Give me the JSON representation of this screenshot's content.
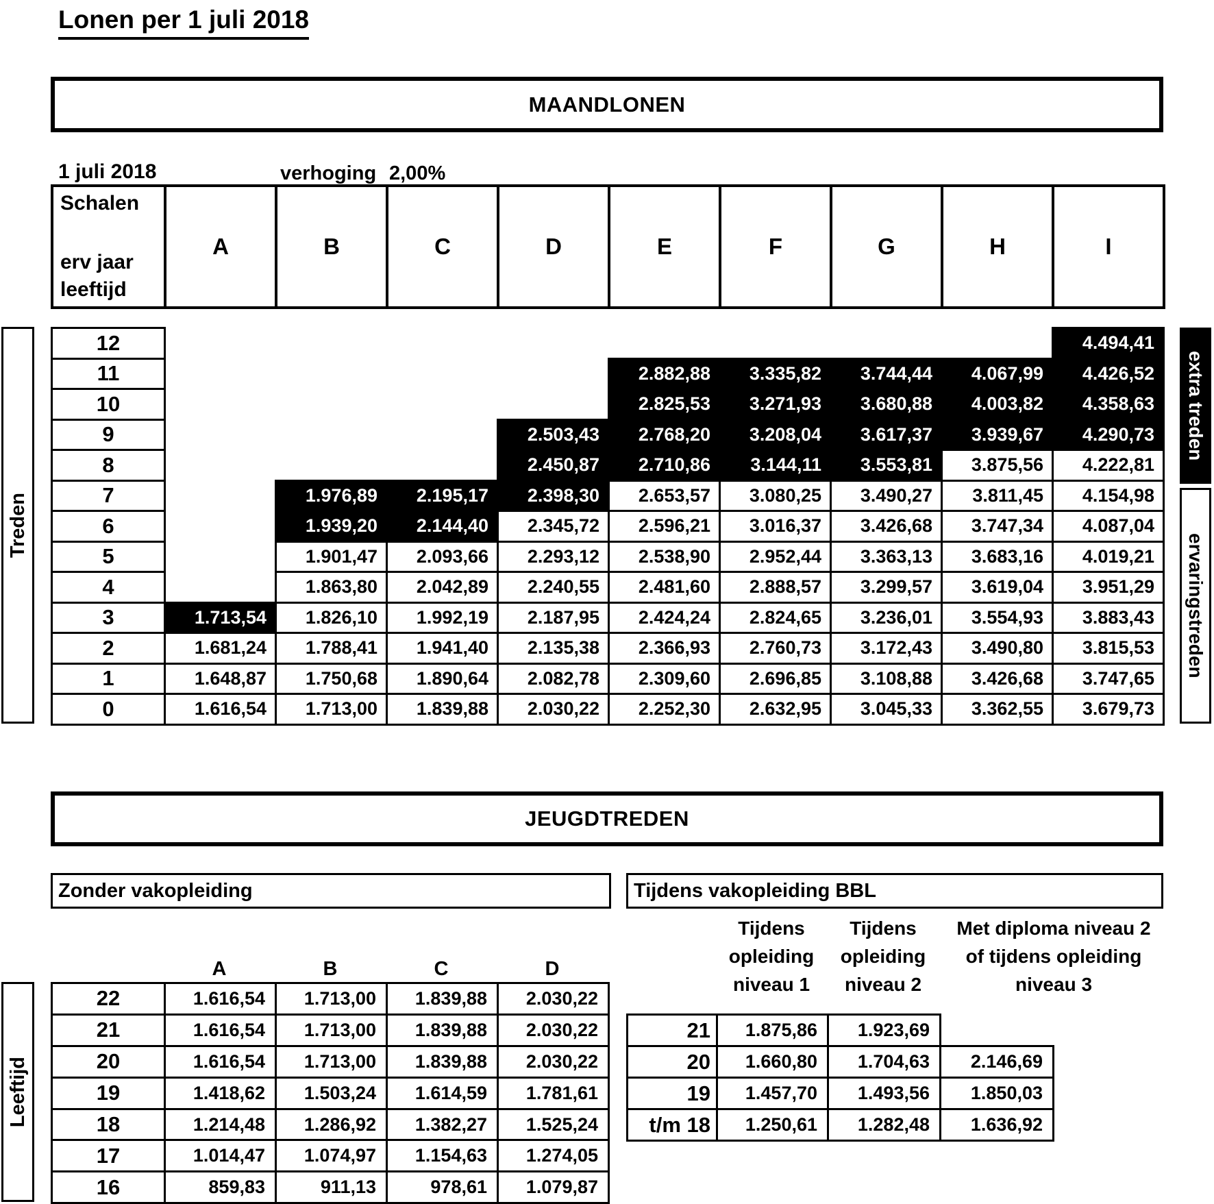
{
  "page": {
    "title": "Lonen per 1 juli 2018"
  },
  "colors": {
    "text": "#000000",
    "background": "#ffffff",
    "highlight_bg": "#000000",
    "highlight_text": "#ffffff"
  },
  "maandlonen": {
    "section_title": "MAANDLONEN",
    "date_label": "1 juli 2018",
    "verhoging_label": "verhoging",
    "verhoging_value": "2,00%",
    "corner": {
      "line1": "Schalen",
      "line2": "erv jaar",
      "line3": "leeftijd"
    },
    "columns": [
      "A",
      "B",
      "C",
      "D",
      "E",
      "F",
      "G",
      "H",
      "I"
    ],
    "left_axis_label": "Treden",
    "right_axis_top_label": "extra treden",
    "right_axis_bottom_label": "ervaringstreden",
    "rows": [
      {
        "label": "12",
        "cells": [
          {
            "v": "",
            "t": "empty"
          },
          {
            "v": "",
            "t": "empty"
          },
          {
            "v": "",
            "t": "empty"
          },
          {
            "v": "",
            "t": "empty"
          },
          {
            "v": "",
            "t": "empty"
          },
          {
            "v": "",
            "t": "empty"
          },
          {
            "v": "",
            "t": "empty"
          },
          {
            "v": "",
            "t": "empty"
          },
          {
            "v": "4.494,41",
            "t": "black"
          }
        ]
      },
      {
        "label": "11",
        "cells": [
          {
            "v": "",
            "t": "empty"
          },
          {
            "v": "",
            "t": "empty"
          },
          {
            "v": "",
            "t": "empty"
          },
          {
            "v": "",
            "t": "empty"
          },
          {
            "v": "2.882,88",
            "t": "black"
          },
          {
            "v": "3.335,82",
            "t": "black"
          },
          {
            "v": "3.744,44",
            "t": "black"
          },
          {
            "v": "4.067,99",
            "t": "black"
          },
          {
            "v": "4.426,52",
            "t": "black"
          }
        ]
      },
      {
        "label": "10",
        "cells": [
          {
            "v": "",
            "t": "empty"
          },
          {
            "v": "",
            "t": "empty"
          },
          {
            "v": "",
            "t": "empty"
          },
          {
            "v": "",
            "t": "empty"
          },
          {
            "v": "2.825,53",
            "t": "black"
          },
          {
            "v": "3.271,93",
            "t": "black"
          },
          {
            "v": "3.680,88",
            "t": "black"
          },
          {
            "v": "4.003,82",
            "t": "black"
          },
          {
            "v": "4.358,63",
            "t": "black"
          }
        ]
      },
      {
        "label": "9",
        "cells": [
          {
            "v": "",
            "t": "empty"
          },
          {
            "v": "",
            "t": "empty"
          },
          {
            "v": "",
            "t": "empty"
          },
          {
            "v": "2.503,43",
            "t": "black"
          },
          {
            "v": "2.768,20",
            "t": "black"
          },
          {
            "v": "3.208,04",
            "t": "black"
          },
          {
            "v": "3.617,37",
            "t": "black"
          },
          {
            "v": "3.939,67",
            "t": "black"
          },
          {
            "v": "4.290,73",
            "t": "black"
          }
        ]
      },
      {
        "label": "8",
        "cells": [
          {
            "v": "",
            "t": "empty"
          },
          {
            "v": "",
            "t": "empty"
          },
          {
            "v": "",
            "t": "empty"
          },
          {
            "v": "2.450,87",
            "t": "black"
          },
          {
            "v": "2.710,86",
            "t": "black"
          },
          {
            "v": "3.144,11",
            "t": "black"
          },
          {
            "v": "3.553,81",
            "t": "black"
          },
          {
            "v": "3.875,56",
            "t": "cell"
          },
          {
            "v": "4.222,81",
            "t": "cell"
          }
        ]
      },
      {
        "label": "7",
        "cells": [
          {
            "v": "",
            "t": "empty"
          },
          {
            "v": "1.976,89",
            "t": "black"
          },
          {
            "v": "2.195,17",
            "t": "black"
          },
          {
            "v": "2.398,30",
            "t": "black"
          },
          {
            "v": "2.653,57",
            "t": "cell"
          },
          {
            "v": "3.080,25",
            "t": "cell"
          },
          {
            "v": "3.490,27",
            "t": "cell"
          },
          {
            "v": "3.811,45",
            "t": "cell"
          },
          {
            "v": "4.154,98",
            "t": "cell"
          }
        ]
      },
      {
        "label": "6",
        "cells": [
          {
            "v": "",
            "t": "empty"
          },
          {
            "v": "1.939,20",
            "t": "black"
          },
          {
            "v": "2.144,40",
            "t": "black"
          },
          {
            "v": "2.345,72",
            "t": "cell"
          },
          {
            "v": "2.596,21",
            "t": "cell"
          },
          {
            "v": "3.016,37",
            "t": "cell"
          },
          {
            "v": "3.426,68",
            "t": "cell"
          },
          {
            "v": "3.747,34",
            "t": "cell"
          },
          {
            "v": "4.087,04",
            "t": "cell"
          }
        ]
      },
      {
        "label": "5",
        "cells": [
          {
            "v": "",
            "t": "empty"
          },
          {
            "v": "1.901,47",
            "t": "cell"
          },
          {
            "v": "2.093,66",
            "t": "cell"
          },
          {
            "v": "2.293,12",
            "t": "cell"
          },
          {
            "v": "2.538,90",
            "t": "cell"
          },
          {
            "v": "2.952,44",
            "t": "cell"
          },
          {
            "v": "3.363,13",
            "t": "cell"
          },
          {
            "v": "3.683,16",
            "t": "cell"
          },
          {
            "v": "4.019,21",
            "t": "cell"
          }
        ]
      },
      {
        "label": "4",
        "cells": [
          {
            "v": "",
            "t": "empty"
          },
          {
            "v": "1.863,80",
            "t": "cell"
          },
          {
            "v": "2.042,89",
            "t": "cell"
          },
          {
            "v": "2.240,55",
            "t": "cell"
          },
          {
            "v": "2.481,60",
            "t": "cell"
          },
          {
            "v": "2.888,57",
            "t": "cell"
          },
          {
            "v": "3.299,57",
            "t": "cell"
          },
          {
            "v": "3.619,04",
            "t": "cell"
          },
          {
            "v": "3.951,29",
            "t": "cell"
          }
        ]
      },
      {
        "label": "3",
        "cells": [
          {
            "v": "1.713,54",
            "t": "black"
          },
          {
            "v": "1.826,10",
            "t": "cell"
          },
          {
            "v": "1.992,19",
            "t": "cell"
          },
          {
            "v": "2.187,95",
            "t": "cell"
          },
          {
            "v": "2.424,24",
            "t": "cell"
          },
          {
            "v": "2.824,65",
            "t": "cell"
          },
          {
            "v": "3.236,01",
            "t": "cell"
          },
          {
            "v": "3.554,93",
            "t": "cell"
          },
          {
            "v": "3.883,43",
            "t": "cell"
          }
        ]
      },
      {
        "label": "2",
        "cells": [
          {
            "v": "1.681,24",
            "t": "cell"
          },
          {
            "v": "1.788,41",
            "t": "cell"
          },
          {
            "v": "1.941,40",
            "t": "cell"
          },
          {
            "v": "2.135,38",
            "t": "cell"
          },
          {
            "v": "2.366,93",
            "t": "cell"
          },
          {
            "v": "2.760,73",
            "t": "cell"
          },
          {
            "v": "3.172,43",
            "t": "cell"
          },
          {
            "v": "3.490,80",
            "t": "cell"
          },
          {
            "v": "3.815,53",
            "t": "cell"
          }
        ]
      },
      {
        "label": "1",
        "cells": [
          {
            "v": "1.648,87",
            "t": "cell"
          },
          {
            "v": "1.750,68",
            "t": "cell"
          },
          {
            "v": "1.890,64",
            "t": "cell"
          },
          {
            "v": "2.082,78",
            "t": "cell"
          },
          {
            "v": "2.309,60",
            "t": "cell"
          },
          {
            "v": "2.696,85",
            "t": "cell"
          },
          {
            "v": "3.108,88",
            "t": "cell"
          },
          {
            "v": "3.426,68",
            "t": "cell"
          },
          {
            "v": "3.747,65",
            "t": "cell"
          }
        ]
      },
      {
        "label": "0",
        "cells": [
          {
            "v": "1.616,54",
            "t": "cell"
          },
          {
            "v": "1.713,00",
            "t": "cell"
          },
          {
            "v": "1.839,88",
            "t": "cell"
          },
          {
            "v": "2.030,22",
            "t": "cell"
          },
          {
            "v": "2.252,30",
            "t": "cell"
          },
          {
            "v": "2.632,95",
            "t": "cell"
          },
          {
            "v": "3.045,33",
            "t": "cell"
          },
          {
            "v": "3.362,55",
            "t": "cell"
          },
          {
            "v": "3.679,73",
            "t": "cell"
          }
        ]
      }
    ]
  },
  "jeugdtreden": {
    "section_title": "JEUGDTREDEN",
    "left_axis_label": "Leeftijd",
    "zonder": {
      "box_label": "Zonder vakopleiding",
      "columns": [
        "A",
        "B",
        "C",
        "D"
      ],
      "rows": [
        {
          "label": "22",
          "values": [
            "1.616,54",
            "1.713,00",
            "1.839,88",
            "2.030,22"
          ]
        },
        {
          "label": "21",
          "values": [
            "1.616,54",
            "1.713,00",
            "1.839,88",
            "2.030,22"
          ]
        },
        {
          "label": "20",
          "values": [
            "1.616,54",
            "1.713,00",
            "1.839,88",
            "2.030,22"
          ]
        },
        {
          "label": "19",
          "values": [
            "1.418,62",
            "1.503,24",
            "1.614,59",
            "1.781,61"
          ]
        },
        {
          "label": "18",
          "values": [
            "1.214,48",
            "1.286,92",
            "1.382,27",
            "1.525,24"
          ]
        },
        {
          "label": "17",
          "values": [
            "1.014,47",
            "1.074,97",
            "1.154,63",
            "1.274,05"
          ]
        },
        {
          "label": "16",
          "values": [
            "859,83",
            "911,13",
            "978,61",
            "1.079,87"
          ]
        }
      ]
    },
    "bbl": {
      "box_label": "Tijdens vakopleiding BBL",
      "col_headers": [
        "Tijdens\nopleiding\nniveau 1",
        "Tijdens\nopleiding\nniveau 2",
        "Met diploma niveau 2\nof tijdens opleiding\nniveau 3"
      ],
      "rows": [
        {
          "label": "21",
          "values": [
            "1.875,86",
            "1.923,69",
            null
          ]
        },
        {
          "label": "20",
          "values": [
            "1.660,80",
            "1.704,63",
            "2.146,69"
          ]
        },
        {
          "label": "19",
          "values": [
            "1.457,70",
            "1.493,56",
            "1.850,03"
          ]
        },
        {
          "label": "t/m 18",
          "values": [
            "1.250,61",
            "1.282,48",
            "1.636,92"
          ]
        }
      ]
    }
  }
}
